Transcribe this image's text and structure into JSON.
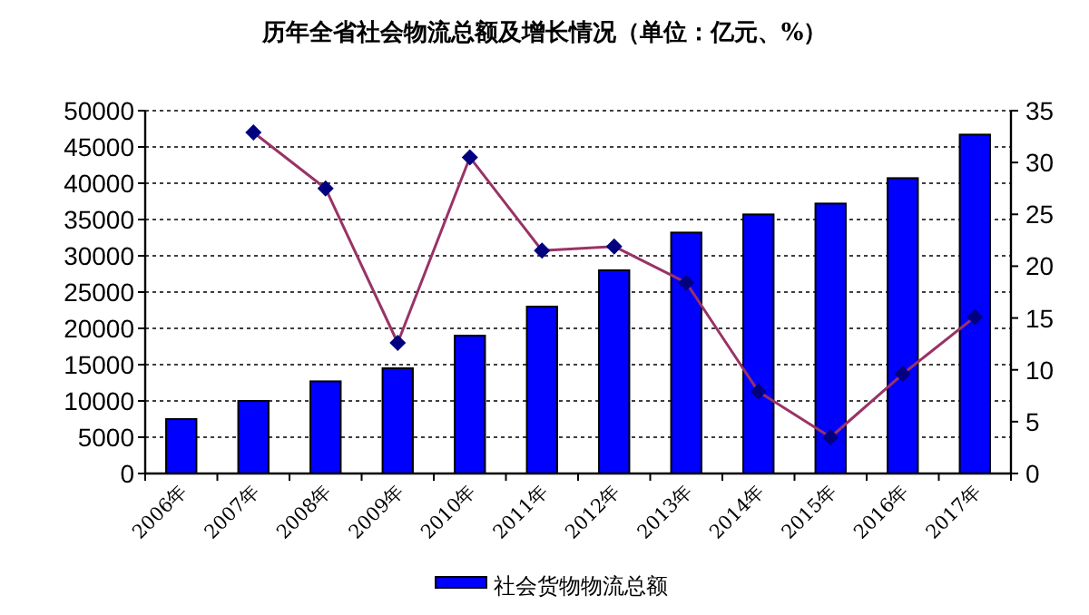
{
  "chart_data": {
    "type": "bar",
    "title": "历年全省社会物流总额及增长情况（单位：亿元、%）",
    "categories": [
      "2006年",
      "2007年",
      "2008年",
      "2009年",
      "2010年",
      "2011年",
      "2012年",
      "2013年",
      "2014年",
      "2015年",
      "2016年",
      "2017年"
    ],
    "series": [
      {
        "name": "社会货物物流总额",
        "color": "#0000ff",
        "values": [
          7500,
          10000,
          12700,
          14500,
          19000,
          23000,
          28000,
          33200,
          35700,
          37200,
          40700,
          46700
        ]
      },
      {
        "type": "line",
        "axis": "y2",
        "color": "#993366",
        "marker": "diamond",
        "values": [
          null,
          32.9,
          27.5,
          12.6,
          30.5,
          21.5,
          21.9,
          18.4,
          7.9,
          3.5,
          9.6,
          15.1
        ]
      }
    ],
    "ylim": [
      0,
      50000
    ],
    "yticks": [
      0,
      5000,
      10000,
      15000,
      20000,
      25000,
      30000,
      35000,
      40000,
      45000,
      50000
    ],
    "y2lim": [
      0,
      35
    ],
    "y2ticks": [
      0,
      5,
      10,
      15,
      20,
      25,
      30,
      35
    ],
    "grid": "y",
    "legend": "bottom"
  }
}
